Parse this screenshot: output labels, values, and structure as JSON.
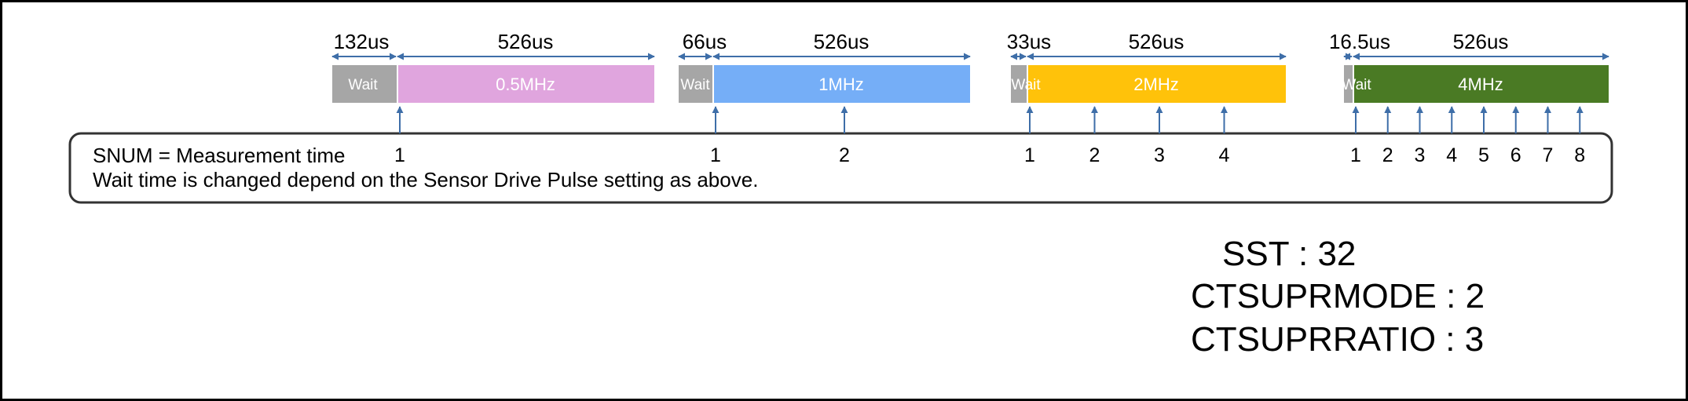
{
  "colors": {
    "wait": "#a6a6a6",
    "arrow": "#3e6ea8",
    "border": "#000000",
    "text": "#000000",
    "block_text": "#ffffff"
  },
  "groups": [
    {
      "wait_time": "132us",
      "drive_time": "526us",
      "wait_label": "Wait",
      "freq_label": "0.5MHz",
      "color": "#e0a5de",
      "measurements": [
        "1"
      ]
    },
    {
      "wait_time": "66us",
      "drive_time": "526us",
      "wait_label": "Wait",
      "freq_label": "1MHz",
      "color": "#75aef7",
      "measurements": [
        "1",
        "2"
      ]
    },
    {
      "wait_time": "33us",
      "drive_time": "526us",
      "wait_label": "Wait",
      "freq_label": "2MHz",
      "color": "#ffc20a",
      "measurements": [
        "1",
        "2",
        "3",
        "4"
      ]
    },
    {
      "wait_time": "16.5us",
      "drive_time": "526us",
      "wait_label": "Wait",
      "freq_label": "4MHz",
      "color": "#4a7a24",
      "measurements": [
        "1",
        "2",
        "3",
        "4",
        "5",
        "6",
        "7",
        "8"
      ]
    }
  ],
  "note": {
    "line1": "SNUM = Measurement time",
    "line2": "Wait time is changed depend on the Sensor Drive Pulse setting as above."
  },
  "params": {
    "sst": "SST : 32",
    "ctsuprmode": "CTSUPRMODE : 2",
    "ctsuprratio": "CTSUPRRATIO : 3"
  }
}
